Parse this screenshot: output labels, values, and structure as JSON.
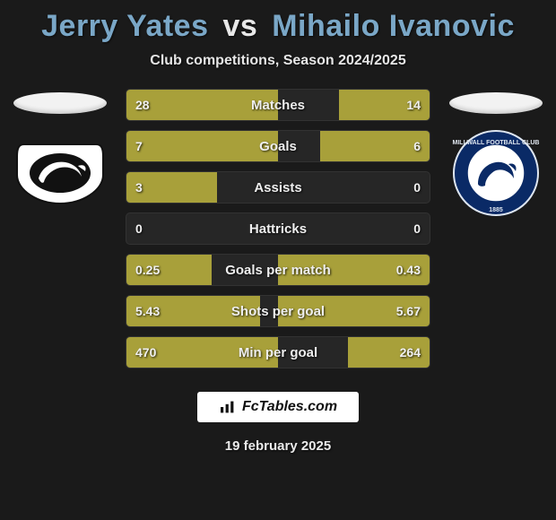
{
  "title": {
    "player1": "Jerry Yates",
    "vs": "vs",
    "player2": "Mihailo Ivanovic"
  },
  "subtitle": "Club competitions, Season 2024/2025",
  "colors": {
    "player1": "#7aa7c7",
    "player2": "#7aa7c7",
    "bar_left": "#a8a03a",
    "bar_right": "#a8a03a",
    "row_bg": "#262626",
    "background": "#1a1a1a",
    "title_p1": "#7aa7c7",
    "title_p2": "#7aa7c7"
  },
  "chart": {
    "max_half_pct": 50,
    "rows": [
      {
        "label": "Matches",
        "left": "28",
        "right": "14",
        "left_pct": 50,
        "right_pct": 30
      },
      {
        "label": "Goals",
        "left": "7",
        "right": "6",
        "left_pct": 50,
        "right_pct": 36
      },
      {
        "label": "Assists",
        "left": "3",
        "right": "0",
        "left_pct": 30,
        "right_pct": 0
      },
      {
        "label": "Hattricks",
        "left": "0",
        "right": "0",
        "left_pct": 0,
        "right_pct": 0
      },
      {
        "label": "Goals per match",
        "left": "0.25",
        "right": "0.43",
        "left_pct": 28,
        "right_pct": 50
      },
      {
        "label": "Shots per goal",
        "left": "5.43",
        "right": "5.67",
        "left_pct": 44,
        "right_pct": 50
      },
      {
        "label": "Min per goal",
        "left": "470",
        "right": "264",
        "left_pct": 50,
        "right_pct": 27
      }
    ]
  },
  "crests": {
    "left_alt": "derby-county-crest",
    "right_alt": "millwall-crest"
  },
  "footer": {
    "brand": "FcTables.com",
    "date": "19 february 2025"
  }
}
